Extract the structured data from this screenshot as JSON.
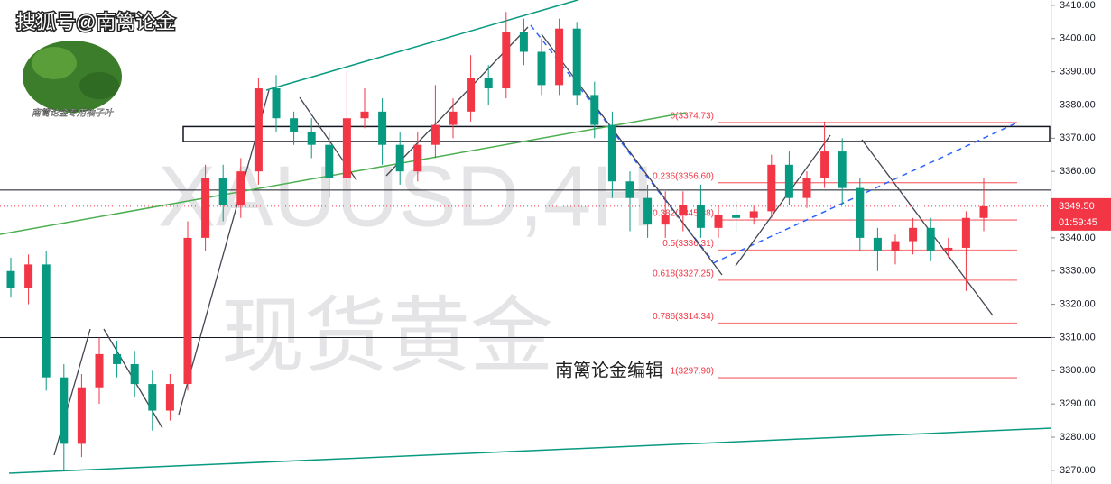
{
  "chart_data": {
    "type": "candlestick",
    "title": "搜狐号@南篱论金",
    "watermark": "XAUUSD,4H",
    "watermark_sub": "现货黄金",
    "annotation": "南篱论金编辑",
    "logo_caption": "南篱论金专用柚子叶",
    "up_color": "#f23645",
    "down_color": "#089981",
    "open": [
      3330,
      3325,
      3332,
      3298,
      3278,
      3295,
      3305,
      3302,
      3296,
      3288,
      3296,
      3340,
      3358,
      3350,
      3360,
      3385,
      3376,
      3372,
      3368,
      3358,
      3376,
      3378,
      3368,
      3360,
      3368,
      3374,
      3378,
      3388,
      3385,
      3402,
      3396,
      3386,
      3403,
      3383,
      3374,
      3357,
      3352,
      3344,
      3347,
      3350,
      3343,
      3347,
      3346,
      3348,
      3362,
      3352,
      3358,
      3366,
      3355,
      3340,
      3336,
      3339,
      3343,
      3336,
      3337,
      3346
    ],
    "high": [
      3334,
      3335,
      3336,
      3302,
      3299,
      3310,
      3309,
      3306,
      3300,
      3299,
      3345,
      3362,
      3362,
      3364,
      3388,
      3389,
      3378,
      3376,
      3372,
      3390,
      3385,
      3382,
      3372,
      3372,
      3386,
      3382,
      3395,
      3392,
      3408,
      3406,
      3400,
      3406,
      3405,
      3387,
      3378,
      3360,
      3356,
      3354,
      3354,
      3356,
      3350,
      3351,
      3350,
      3365,
      3366,
      3360,
      3375,
      3370,
      3358,
      3343,
      3341,
      3346,
      3346,
      3340,
      3348,
      3358
    ],
    "low": [
      3322,
      3320,
      3294,
      3270,
      3274,
      3290,
      3298,
      3292,
      3282,
      3285,
      3294,
      3336,
      3345,
      3346,
      3356,
      3372,
      3368,
      3364,
      3352,
      3355,
      3373,
      3362,
      3356,
      3357,
      3364,
      3370,
      3375,
      3380,
      3382,
      3392,
      3383,
      3383,
      3380,
      3370,
      3352,
      3342,
      3340,
      3340,
      3342,
      3340,
      3340,
      3342,
      3344,
      3346,
      3350,
      3349,
      3355,
      3350,
      3336,
      3330,
      3332,
      3335,
      3333,
      3334,
      3324,
      3342
    ],
    "close": [
      3325,
      3332,
      3298,
      3278,
      3295,
      3305,
      3302,
      3296,
      3288,
      3296,
      3340,
      3358,
      3350,
      3360,
      3385,
      3376,
      3372,
      3368,
      3358,
      3376,
      3378,
      3368,
      3360,
      3368,
      3374,
      3378,
      3388,
      3385,
      3402,
      3396,
      3386,
      3403,
      3383,
      3374,
      3357,
      3352,
      3344,
      3347,
      3350,
      3343,
      3347,
      3346,
      3348,
      3362,
      3352,
      3358,
      3366,
      3355,
      3340,
      3336,
      3339,
      3343,
      3336,
      3337,
      3346,
      3349.5
    ],
    "last_price": {
      "value": 3349.5,
      "label": "3349.50"
    },
    "countdown": "01:59:45",
    "hlines": [
      3354.4,
      3310
    ],
    "zone": [
      3369,
      3373.5
    ],
    "fib": [
      {
        "value": 3374.73,
        "label": "0(3374.73)"
      },
      {
        "value": 3356.6,
        "label": "0.236(3356.60)"
      },
      {
        "value": 3345.38,
        "label": "0.382(3345.38)"
      },
      {
        "value": 3336.31,
        "label": "0.5(3336.31)"
      },
      {
        "value": 3327.25,
        "label": "0.618(3327.25)"
      },
      {
        "value": 3314.34,
        "label": "0.786(3314.34)"
      },
      {
        "value": 3297.9,
        "label": "1(3297.90)"
      }
    ],
    "ylim": [
      3265.9,
      3411.6
    ],
    "yticks": [
      {
        "value": 3270,
        "label": "3270.00"
      },
      {
        "value": 3280,
        "label": "3280.00"
      },
      {
        "value": 3290,
        "label": "3290.00"
      },
      {
        "value": 3300,
        "label": "3300.00"
      },
      {
        "value": 3310,
        "label": "3310.00"
      },
      {
        "value": 3320,
        "label": "3320.00"
      },
      {
        "value": 3330,
        "label": "3330.00"
      },
      {
        "value": 3340,
        "label": "3340.00"
      },
      {
        "value": 3350,
        "label": "3350.00"
      },
      {
        "value": 3360,
        "label": "3360.00"
      },
      {
        "value": 3370,
        "label": "3370.00"
      },
      {
        "value": 3380,
        "label": "3380.00"
      },
      {
        "value": 3390,
        "label": "3390.00"
      },
      {
        "value": 3400,
        "label": "3400.00"
      },
      {
        "value": 3410,
        "label": "3410.00"
      }
    ]
  }
}
